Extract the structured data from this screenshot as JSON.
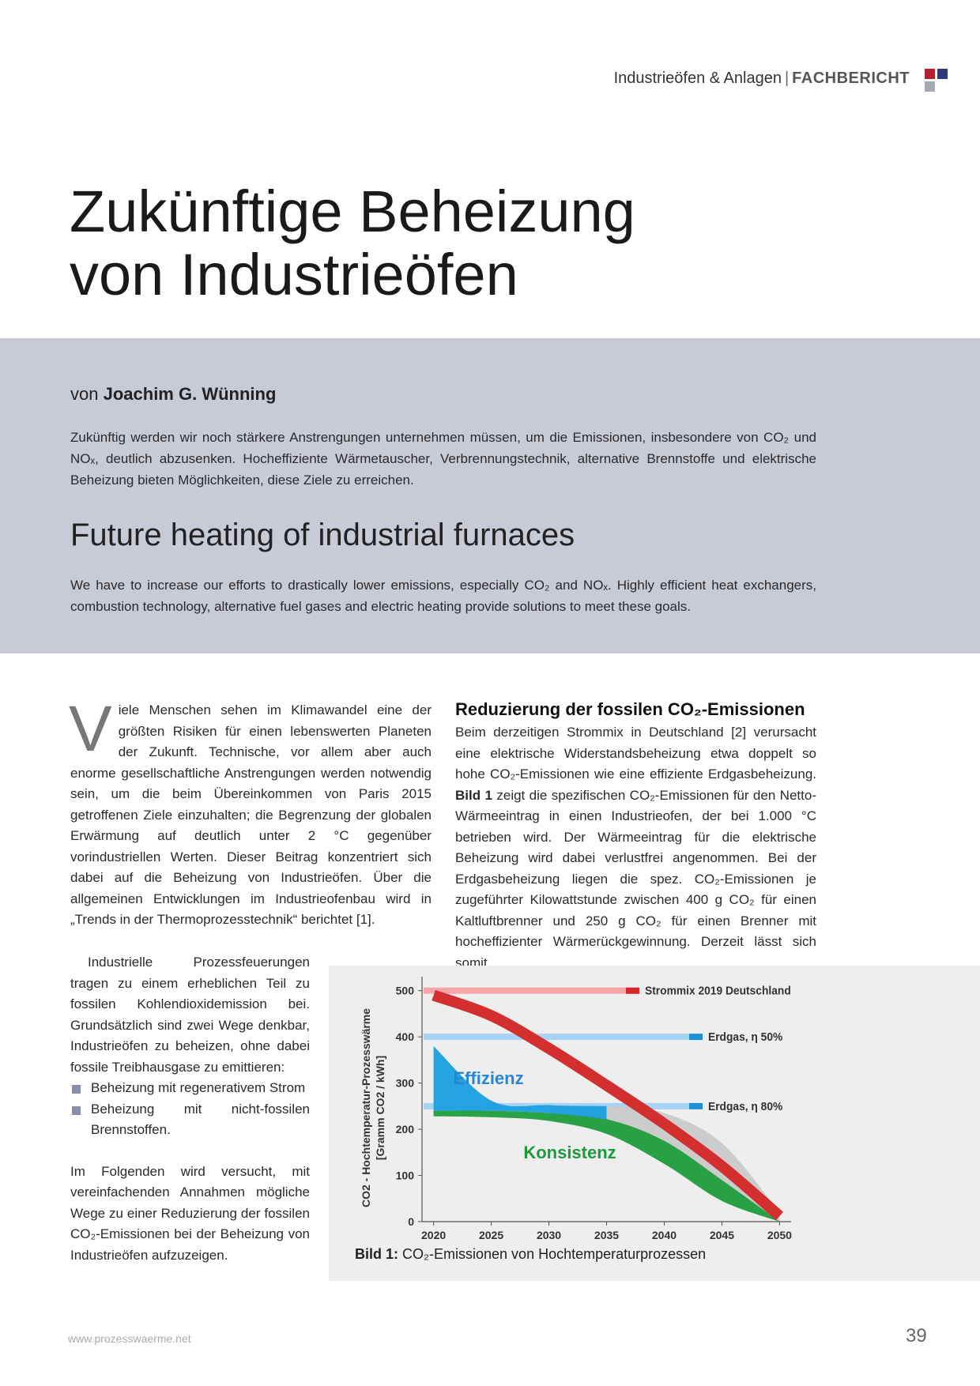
{
  "header": {
    "section": "Industrieöfen & Anlagen",
    "separator": "|",
    "category": "FACHBERICHT"
  },
  "title": [
    "Zukünftige Beheizung",
    "von Industrieöfen"
  ],
  "author": {
    "prefix": "von",
    "name": "Joachim G. Wünning"
  },
  "abstract_de": "Zukünftig werden wir noch stärkere Anstrengungen unternehmen müssen, um die Emissionen, insbesondere von CO₂ und NOₓ, deutlich abzusenken. Hocheffiziente Wärmetauscher, Verbrennungstechnik, alternative Brennstoffe und elektrische Beheizung bieten Möglichkeiten, diese Ziele zu erreichen.",
  "title_en": "Future heating of industrial furnaces",
  "abstract_en": "We have to increase our efforts to drastically lower emissions, especially CO₂ and NOₓ. Highly efficient heat exchangers, combustion technology, alternative fuel gases and electric heating provide solutions to meet these goals.",
  "body": {
    "drop_cap": "V",
    "intro": "iele Menschen sehen im Klimawandel eine der größten Risiken für einen lebenswerten Planeten der Zukunft. Technische, vor allem aber auch enorme gesellschaftliche Anstrengungen werden notwendig sein, um die beim Übereinkommen von Paris 2015 getroffenen Ziele einzuhalten; die Begrenzung der globalen Erwärmung auf deutlich unter 2 °C gegenüber vorindustriellen Werten. Dieser Beitrag konzentriert sich dabei auf die Beheizung von Industrieöfen. Über die allgemeinen Entwicklungen im Industrieofenbau wird in „Trends in der Thermoprozesstechnik“ berichtet [1].",
    "paragraph_2": "Industrielle Prozessfeuerungen tragen zu einem erheblichen Teil zu fossilen Kohlendioxidemission bei. Grundsätzlich sind zwei Wege denkbar, Industrieöfen zu beheizen, ohne dabei fossile Treibhausgase zu emittieren:",
    "bullets": [
      "Beheizung mit regenerativem Strom",
      "Beheizung mit nicht-fossilen Brennstoffen."
    ],
    "paragraph_3": "Im Folgenden wird versucht, mit vereinfachenden Annahmen mögliche Wege zu einer Reduzierung der fossilen CO₂-Emissionen bei der Beheizung von Industrieöfen aufzuzeigen."
  },
  "section": {
    "heading": "Reduzierung der fossilen CO₂-Emissionen",
    "text_before": "Beim derzeitigen Strommix in Deutschland [2] verursacht eine elektrische Widerstandsbeheizung etwa doppelt so hohe CO₂-Emissionen wie eine effiziente Erdgasbeheizung.",
    "text_bold": "Bild 1",
    "text_after": "zeigt die spezifischen CO₂-Emissionen für den Netto-Wärmeeintrag in einen Industrieofen, der bei 1.000 °C betrieben wird. Der Wärmeeintrag für die elektrische Beheizung wird dabei verlustfrei angenommen. Bei der Erdgasbeheizung liegen die spez. CO₂-Emissionen je zugeführter Kilowattstunde zwischen 400 g CO₂ für einen Kaltluftbrenner und 250 g CO₂ für einen Brenner mit hocheffizienter Wärmerückgewinnung. Derzeit lässt sich somit"
  },
  "figure": {
    "caption_label": "Bild 1:",
    "caption_text": "CO₂-Emissionen von Hochtemperaturprozessen"
  },
  "footer": {
    "url": "www.prozesswaerme.net",
    "page": "39"
  },
  "chart_data": {
    "type": "area",
    "y_label": [
      "CO2 - Hochtemperatur-Prozesswärme",
      "[Gramm CO2 / kWh]"
    ],
    "x": [
      2020,
      2025,
      2030,
      2035,
      2040,
      2045,
      2050
    ],
    "xlim": [
      2019,
      2051
    ],
    "xticks": [
      2020,
      2025,
      2030,
      2035,
      2040,
      2045,
      2050
    ],
    "ylim": [
      0,
      520
    ],
    "yticks": [
      0,
      100,
      200,
      300,
      400,
      500
    ],
    "reference_lines": [
      {
        "label": "Strommix 2019 Deutschland",
        "value": 500,
        "color": "#f5a6a8",
        "end_color": "#d7262f"
      },
      {
        "label": "Erdgas, η 50%",
        "value": 400,
        "color": "#a9d3f3",
        "end_color": "#1d8fd8"
      },
      {
        "label": "Erdgas, η 80%",
        "value": 250,
        "color": "#a9d3f3",
        "end_color": "#1d8fd8"
      }
    ],
    "series": [
      {
        "kind": "band",
        "color": "#c9c9c9",
        "values": [
          null,
          null,
          240,
          250,
          235,
          170,
          20
        ],
        "lower": [
          null,
          null,
          218,
          190,
          125,
          45,
          0
        ]
      },
      {
        "kind": "band",
        "color": "#1f9d3c",
        "values": [
          240,
          240,
          235,
          222,
          175,
          90,
          0
        ],
        "lower": [
          228,
          226,
          218,
          190,
          125,
          45,
          0
        ]
      },
      {
        "kind": "band",
        "color": "#1a9fe0",
        "values": [
          380,
          262,
          252,
          250,
          null,
          null,
          null
        ],
        "lower": [
          240,
          240,
          235,
          222,
          null,
          null,
          null
        ]
      },
      {
        "kind": "line",
        "color": "#d32f2f",
        "values": [
          490,
          446,
          375,
          295,
          212,
          120,
          12
        ]
      }
    ],
    "annotations": [
      {
        "text": "Effizienz",
        "color": "#2a86d4"
      },
      {
        "text": "Konsistenz",
        "color": "#1a9a3a"
      }
    ]
  }
}
